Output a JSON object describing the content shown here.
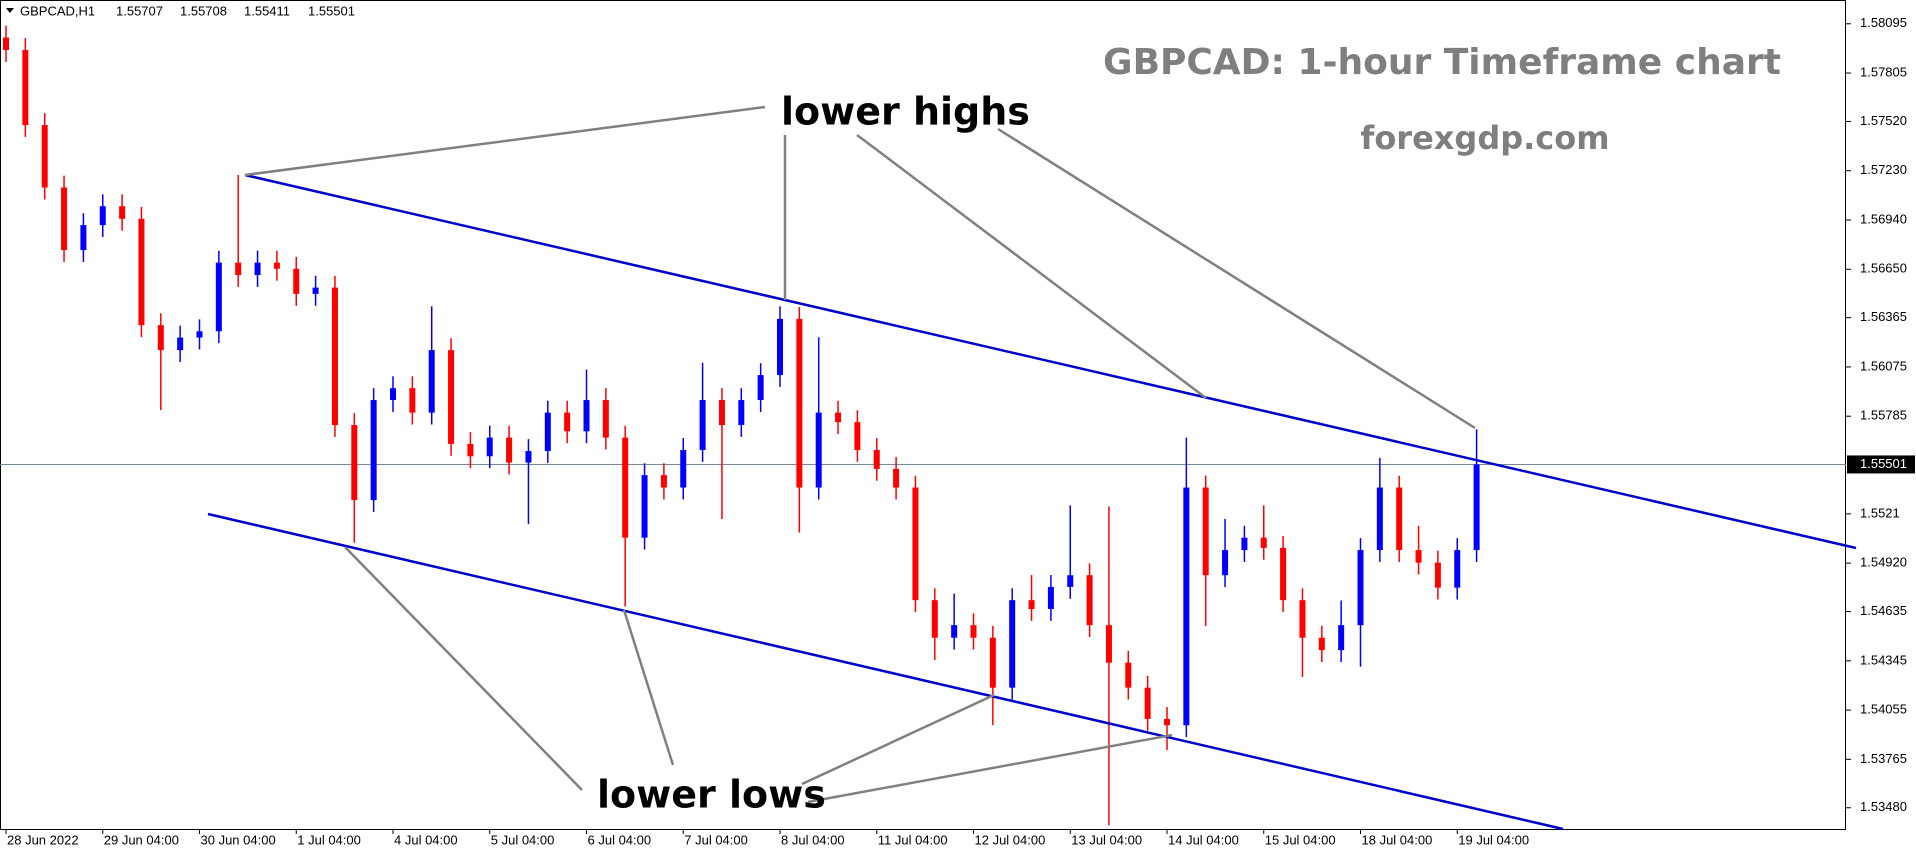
{
  "chart_data": {
    "type": "candlestick",
    "symbol": "GBPCAD,H1",
    "header_values": [
      1.55707,
      1.55708,
      1.55411,
      1.55501
    ],
    "title": "GBPCAD: 1-hour Timeframe chart",
    "subtitle": "forexgdp.com",
    "annotations": [
      "lower highs",
      "lower lows"
    ],
    "up_color": "#0000ff",
    "down_color": "#ff0000",
    "current_price": 1.55501,
    "ylim": [
      1.53355,
      1.58235
    ],
    "yticks": [
      1.58095,
      1.57805,
      {
        "value": 1.5752,
        "label": "1.57520"
      },
      {
        "value": 1.5723,
        "label": "1.57230"
      },
      {
        "value": 1.5694,
        "label": "1.56940"
      },
      {
        "value": 1.5665,
        "label": "1.56650"
      },
      1.56365,
      1.56075,
      1.55785,
      1.5521,
      {
        "value": 1.5492,
        "label": "1.54920"
      },
      1.54635,
      1.54345,
      1.54055,
      1.53765,
      {
        "value": 1.5348,
        "label": "1.53480"
      }
    ],
    "categories": [
      "28 Jun 2022",
      null,
      null,
      null,
      null,
      "29 Jun 04:00",
      null,
      null,
      null,
      null,
      "30 Jun 04:00",
      null,
      null,
      null,
      null,
      "1 Jul 04:00",
      null,
      null,
      null,
      null,
      "4 Jul 04:00",
      null,
      null,
      null,
      null,
      "5 Jul 04:00",
      null,
      null,
      null,
      null,
      "6 Jul 04:00",
      null,
      null,
      null,
      null,
      "7 Jul 04:00",
      null,
      null,
      null,
      null,
      "8 Jul 04:00",
      null,
      null,
      null,
      null,
      "11 Jul 04:00",
      null,
      null,
      null,
      null,
      "12 Jul 04:00",
      null,
      null,
      null,
      null,
      "13 Jul 04:00",
      null,
      null,
      null,
      null,
      "14 Jul 04:00",
      null,
      null,
      null,
      null,
      "15 Jul 04:00",
      null,
      null,
      null,
      null,
      "18 Jul 04:00",
      null,
      null,
      null,
      null,
      "19 Jul 04:00",
      null
    ],
    "open": [
      1.58014,
      1.57941,
      1.57499,
      1.57131,
      1.56763,
      1.5691,
      1.57021,
      1.56947,
      1.56321,
      1.56174,
      1.56248,
      1.56285,
      1.56689,
      1.56616,
      1.56689,
      1.56653,
      1.56505,
      1.56542,
      1.55733,
      1.55291,
      1.5588,
      1.5595,
      1.55806,
      1.56174,
      1.55622,
      1.55549,
      1.55659,
      1.55512,
      1.5558,
      1.55806,
      1.55696,
      1.5588,
      1.55659,
      1.5507,
      1.55438,
      1.55365,
      1.55586,
      1.5588,
      1.55733,
      1.5588,
      1.56027,
      1.56358,
      1.55365,
      1.55806,
      1.5575,
      1.55586,
      1.55475,
      1.55365,
      1.54702,
      1.54481,
      1.54555,
      1.54481,
      1.54187,
      1.54702,
      1.5465,
      1.5478,
      1.54849,
      1.54555,
      1.54334,
      1.54187,
      1.54003,
      1.53966,
      1.55365,
      1.54849,
      1.54997,
      1.5507,
      1.5501,
      1.54702,
      1.54481,
      1.54408,
      1.54555,
      1.54997,
      1.55365,
      1.54997,
      1.54923,
      1.54776,
      1.54997
    ],
    "high": [
      1.58084,
      1.58011,
      1.57569,
      1.57201,
      1.5698,
      1.57091,
      1.57091,
      1.57017,
      1.56391,
      1.56318,
      1.56355,
      1.56759,
      1.57205,
      1.56759,
      1.56759,
      1.56723,
      1.56612,
      1.56612,
      1.55803,
      1.5595,
      1.5602,
      1.5602,
      1.56432,
      1.56244,
      1.55692,
      1.55729,
      1.55729,
      1.5565,
      1.55876,
      1.55876,
      1.5606,
      1.5595,
      1.55729,
      1.55508,
      1.55508,
      1.55656,
      1.561,
      1.5595,
      1.5595,
      1.56097,
      1.56432,
      1.56428,
      1.5625,
      1.55876,
      1.5582,
      1.55656,
      1.55545,
      1.55435,
      1.54772,
      1.5474,
      1.54625,
      1.54551,
      1.54772,
      1.5485,
      1.5485,
      1.5526,
      1.54919,
      1.55254,
      1.54404,
      1.54257,
      1.54073,
      1.55659,
      1.55435,
      1.5518,
      1.5514,
      1.5526,
      1.5508,
      1.54772,
      1.54551,
      1.547,
      1.55067,
      1.5554,
      1.55435,
      1.5514,
      1.54993,
      1.55067,
      1.55708
    ],
    "low": [
      1.57871,
      1.57429,
      1.57061,
      1.56693,
      1.56693,
      1.5684,
      1.56877,
      1.56251,
      1.55821,
      1.56104,
      1.56178,
      1.56215,
      1.56546,
      1.56546,
      1.56583,
      1.56435,
      1.56435,
      1.55663,
      1.5504,
      1.55221,
      1.5581,
      1.55736,
      1.55736,
      1.55552,
      1.55479,
      1.55479,
      1.55442,
      1.5515,
      1.5551,
      1.55626,
      1.55626,
      1.55589,
      1.54665,
      1.55,
      1.55295,
      1.55295,
      1.55516,
      1.5518,
      1.55663,
      1.5581,
      1.55957,
      1.551,
      1.55295,
      1.5568,
      1.55516,
      1.55405,
      1.55295,
      1.54632,
      1.5435,
      1.54411,
      1.54411,
      1.53966,
      1.54117,
      1.5458,
      1.5458,
      1.5471,
      1.54485,
      1.53377,
      1.54117,
      1.53933,
      1.53819,
      1.53896,
      1.5455,
      1.54779,
      1.54927,
      1.5494,
      1.54632,
      1.5425,
      1.54338,
      1.54338,
      1.5431,
      1.54927,
      1.54927,
      1.54853,
      1.54706,
      1.54706,
      1.54927
    ],
    "close": [
      1.57941,
      1.57499,
      1.57131,
      1.56763,
      1.5691,
      1.57021,
      1.56947,
      1.56321,
      1.56174,
      1.56248,
      1.56285,
      1.56689,
      1.56616,
      1.56689,
      1.56653,
      1.56505,
      1.56542,
      1.55733,
      1.55291,
      1.5588,
      1.5595,
      1.55806,
      1.56174,
      1.55622,
      1.55549,
      1.55659,
      1.55512,
      1.5558,
      1.55806,
      1.55696,
      1.5588,
      1.55659,
      1.5507,
      1.55438,
      1.55365,
      1.55586,
      1.5588,
      1.55733,
      1.5588,
      1.56027,
      1.56358,
      1.55365,
      1.55806,
      1.5575,
      1.55586,
      1.55475,
      1.55365,
      1.54702,
      1.54481,
      1.54555,
      1.54481,
      1.54187,
      1.54702,
      1.5465,
      1.5478,
      1.54849,
      1.54555,
      1.54334,
      1.54187,
      1.54003,
      1.53966,
      1.55365,
      1.54849,
      1.54997,
      1.5507,
      1.5501,
      1.54702,
      1.54481,
      1.54408,
      1.54555,
      1.54997,
      1.55365,
      1.54997,
      1.54923,
      1.54776,
      1.54997,
      1.55501
    ]
  }
}
